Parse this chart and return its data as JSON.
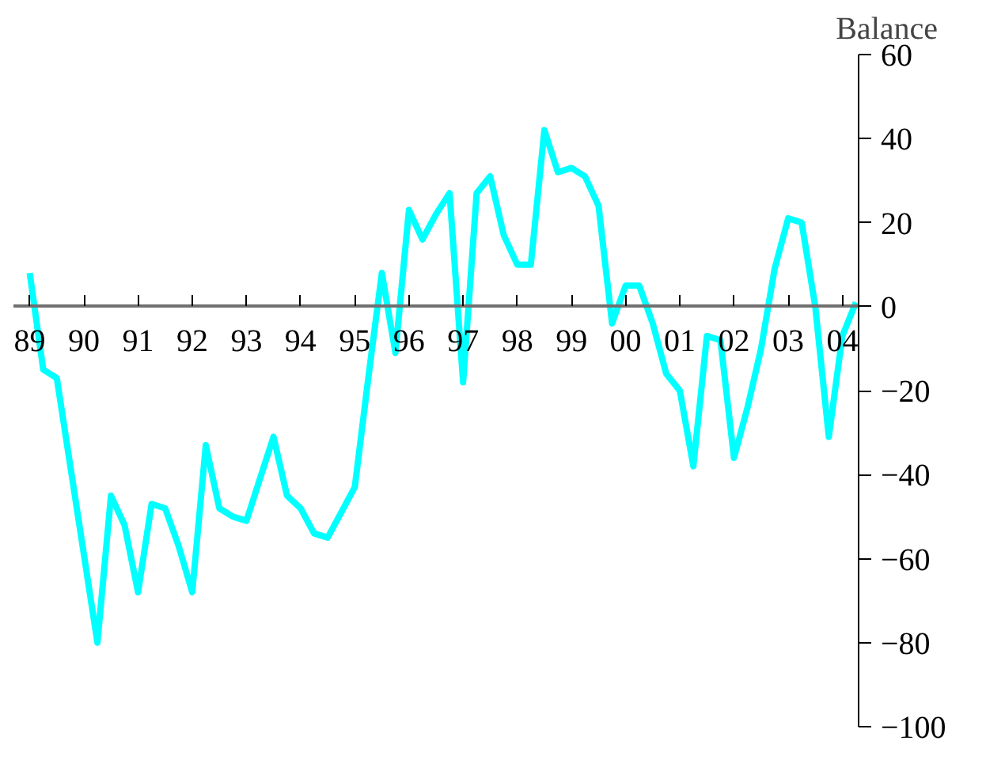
{
  "chart_data": {
    "type": "line",
    "ylabel": "Balance",
    "x": [
      1989.0,
      1989.25,
      1989.5,
      1989.75,
      1990.0,
      1990.25,
      1990.5,
      1990.75,
      1991.0,
      1991.25,
      1991.5,
      1991.75,
      1992.0,
      1992.25,
      1992.5,
      1992.75,
      1993.0,
      1993.25,
      1993.5,
      1993.75,
      1994.0,
      1994.25,
      1994.5,
      1994.75,
      1995.0,
      1995.25,
      1995.5,
      1995.75,
      1996.0,
      1996.25,
      1996.5,
      1996.75,
      1997.0,
      1997.25,
      1997.5,
      1997.75,
      1998.0,
      1998.25,
      1998.5,
      1998.75,
      1999.0,
      1999.25,
      1999.5,
      1999.75,
      2000.0,
      2000.25,
      2000.5,
      2000.75,
      2001.0,
      2001.25,
      2001.5,
      2001.75,
      2002.0,
      2002.25,
      2002.5,
      2002.75,
      2003.0,
      2003.25,
      2003.5,
      2003.75,
      2004.0,
      2004.25
    ],
    "values": [
      8,
      -15,
      -17,
      -38,
      -59,
      -80,
      -45,
      -52,
      -68,
      -47,
      -48,
      -57,
      -68,
      -33,
      -48,
      -50,
      -51,
      -41,
      -31,
      -45,
      -48,
      -54,
      -55,
      -49,
      -43,
      -17,
      8,
      -11,
      23,
      16,
      22,
      27,
      -18,
      27,
      31,
      17,
      10,
      10,
      42,
      32,
      33,
      31,
      24,
      -4,
      5,
      5,
      -4,
      -16,
      -20,
      -38,
      -7,
      -8,
      -36,
      -24,
      -10,
      9,
      21,
      20,
      0,
      -31,
      -7,
      1
    ],
    "color": "#00ffff",
    "xlim": [
      1988.7,
      2004.3
    ],
    "xticks": [
      {
        "value": 1989,
        "label": "89"
      },
      {
        "value": 1990,
        "label": "90"
      },
      {
        "value": 1991,
        "label": "91"
      },
      {
        "value": 1992,
        "label": "92"
      },
      {
        "value": 1993,
        "label": "93"
      },
      {
        "value": 1994,
        "label": "94"
      },
      {
        "value": 1995,
        "label": "95"
      },
      {
        "value": 1996,
        "label": "96"
      },
      {
        "value": 1997,
        "label": "97"
      },
      {
        "value": 1998,
        "label": "98"
      },
      {
        "value": 1999,
        "label": "99"
      },
      {
        "value": 2000,
        "label": "00"
      },
      {
        "value": 2001,
        "label": "01"
      },
      {
        "value": 2002,
        "label": "02"
      },
      {
        "value": 2003,
        "label": "03"
      },
      {
        "value": 2004,
        "label": "04"
      }
    ],
    "ylim": [
      -100,
      60
    ],
    "yticks": [
      -100,
      -80,
      -60,
      -40,
      -20,
      0,
      20,
      40,
      60
    ]
  }
}
